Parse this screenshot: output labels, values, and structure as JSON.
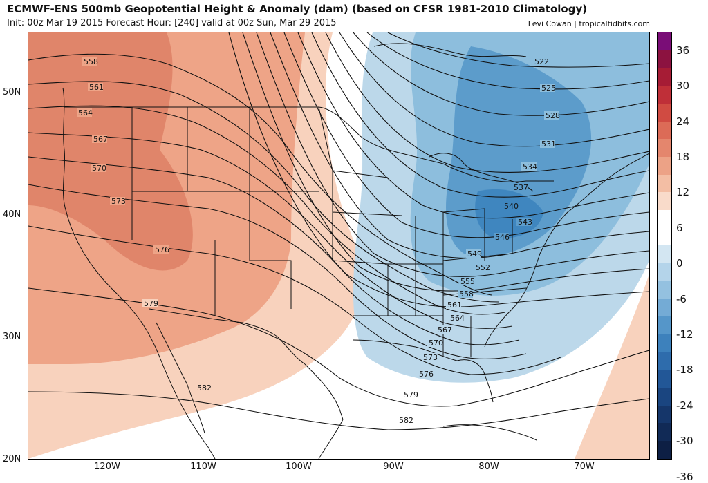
{
  "header": {
    "title": "ECMWF-ENS 500mb Geopotential Height & Anomaly (dam) (based on CFSR 1981-2010 Climatology)",
    "subtitle": "Init: 00z Mar 19 2015   Forecast Hour: [240]   valid at 00z Sun, Mar 29 2015",
    "credit": "Levi Cowan | tropicaltidbits.com"
  },
  "map": {
    "lat_labels": [
      "50N",
      "40N",
      "30N",
      "20N"
    ],
    "lon_labels": [
      "120W",
      "110W",
      "100W",
      "90W",
      "80W",
      "70W"
    ],
    "contour_labels": [
      "522",
      "525",
      "528",
      "531",
      "534",
      "537",
      "540",
      "543",
      "546",
      "549",
      "552",
      "555",
      "558",
      "561",
      "564",
      "567",
      "570",
      "573",
      "576",
      "579",
      "582"
    ],
    "west_contour_labels": [
      "558",
      "561",
      "564",
      "567",
      "570",
      "573",
      "576",
      "579",
      "582"
    ],
    "colors": {
      "pos_strong": "#e0856a",
      "pos_med": "#eea487",
      "pos_light": "#f8d2bd",
      "neg_light": "#bcd8ea",
      "neg_med": "#8dbedd",
      "neg_strong": "#5c9ccb",
      "neg_deep": "#3f86bf"
    }
  },
  "colorbar": {
    "labels": [
      "36",
      "30",
      "24",
      "18",
      "12",
      "6",
      "0",
      "-6",
      "-12",
      "-18",
      "-24",
      "-30",
      "-36"
    ],
    "colors": [
      "#7a0d77",
      "#8c1240",
      "#a61c35",
      "#bf2f38",
      "#d04b42",
      "#dc6b57",
      "#e4866d",
      "#eca286",
      "#f3bea4",
      "#f9dbca",
      "#ffffff",
      "#ffffff",
      "#d3e6f2",
      "#b4d4ea",
      "#94c1e0",
      "#74abd5",
      "#5596c9",
      "#3d81bc",
      "#2e6cac",
      "#225797",
      "#1a4580",
      "#15366a",
      "#112a56",
      "#0d1f44"
    ]
  }
}
